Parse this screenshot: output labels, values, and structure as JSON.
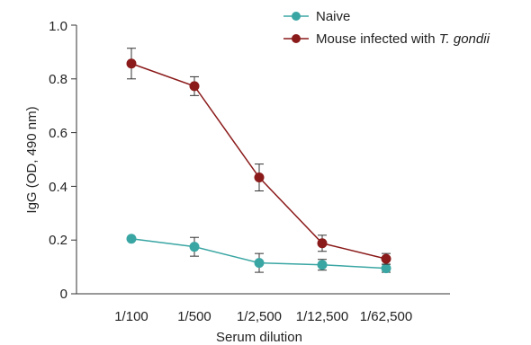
{
  "chart_data": {
    "type": "line",
    "xlabel": "Serum dilution",
    "ylabel": "IgG (OD, 490 nm)",
    "categories": [
      "1/100",
      "1/500",
      "1/2,500",
      "1/12,500",
      "1/62,500"
    ],
    "ylim": [
      0,
      1.0
    ],
    "yticks": [
      "0",
      "0.2",
      "0.4",
      "0.6",
      "0.8",
      "1.0"
    ],
    "ytick_values": [
      0,
      0.2,
      0.4,
      0.6,
      0.8,
      1.0
    ],
    "grid": false,
    "legend_position": "top-right",
    "series": [
      {
        "name": "Naive",
        "name_plain": "Naive",
        "color": "#3aa6a3",
        "values": [
          0.205,
          0.175,
          0.115,
          0.108,
          0.095
        ],
        "errors": [
          0.0,
          0.035,
          0.035,
          0.02,
          0.015
        ]
      },
      {
        "name": "Mouse infected with T. gondii",
        "name_plain": "Mouse infected with ",
        "name_italic": "T. gondii",
        "color": "#8b1a1a",
        "values": [
          0.857,
          0.773,
          0.433,
          0.188,
          0.13
        ],
        "errors": [
          0.057,
          0.035,
          0.05,
          0.03,
          0.02
        ]
      }
    ]
  }
}
